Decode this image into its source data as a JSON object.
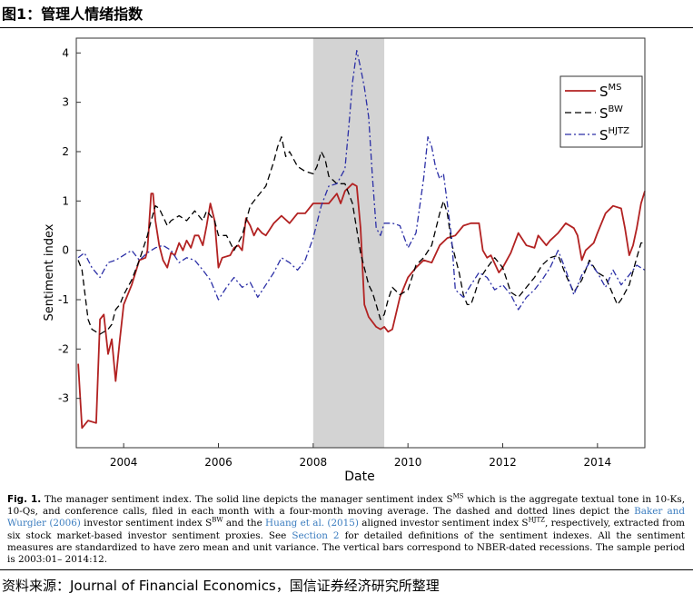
{
  "header": {
    "title": "图1：管理人情绪指数"
  },
  "caption": {
    "fig_label": "Fig. 1.",
    "p1": " The manager sentiment index. The solid line depicts the manager sentiment index S",
    "p1_sup": "MS",
    "p2": " which is the aggregate textual tone in 10-Ks, 10-Qs, and conference calls, filed in each month with a four-month moving average. The dashed and dotted lines depict the ",
    "link1": "Baker and Wurgler (2006)",
    "p3": " investor sentiment index S",
    "p3_sup": "BW",
    "p4": " and the ",
    "link2": "Huang et al. (2015)",
    "p5": " aligned investor sentiment index S",
    "p5_sup": "HJTZ",
    "p6": ", respectively, extracted from six stock market-based investor sentiment proxies. See ",
    "link3": "Section 2",
    "p7": " for detailed definitions of the sentiment indexes. All the sentiment measures are standardized to have zero mean and unit variance. The vertical bars correspond to NBER-dated recessions. The sample period is 2003:01– 2014:12."
  },
  "source": {
    "text": "资料来源：Journal of Financial Economics，国信证券经济研究所整理"
  },
  "chart_data": {
    "type": "line",
    "xlabel": "Date",
    "ylabel": "Sentiment index",
    "xlim": [
      2003.0,
      2015.0
    ],
    "ylim": [
      -4.0,
      4.3
    ],
    "xticks": [
      2004,
      2006,
      2008,
      2010,
      2012,
      2014
    ],
    "yticks": [
      -3,
      -2,
      -1,
      0,
      1,
      2,
      3,
      4
    ],
    "grid": false,
    "legend_position": "top-right",
    "shaded_regions": [
      {
        "from": 2008.0,
        "to": 2009.5,
        "color": "#d3d3d3"
      }
    ],
    "series": [
      {
        "name": "S",
        "name_sup": "MS",
        "color": "#b22222",
        "dash": "solid",
        "points": [
          [
            2003.04,
            -2.3
          ],
          [
            2003.12,
            -3.6
          ],
          [
            2003.25,
            -3.45
          ],
          [
            2003.42,
            -3.5
          ],
          [
            2003.5,
            -1.4
          ],
          [
            2003.58,
            -1.3
          ],
          [
            2003.67,
            -2.1
          ],
          [
            2003.75,
            -1.8
          ],
          [
            2003.83,
            -2.65
          ],
          [
            2003.92,
            -1.8
          ],
          [
            2004.0,
            -1.1
          ],
          [
            2004.17,
            -0.7
          ],
          [
            2004.33,
            -0.2
          ],
          [
            2004.46,
            -0.15
          ],
          [
            2004.5,
            0.0
          ],
          [
            2004.58,
            1.15
          ],
          [
            2004.62,
            1.15
          ],
          [
            2004.67,
            0.6
          ],
          [
            2004.75,
            0.1
          ],
          [
            2004.83,
            -0.2
          ],
          [
            2004.92,
            -0.35
          ],
          [
            2005.0,
            -0.05
          ],
          [
            2005.08,
            -0.1
          ],
          [
            2005.17,
            0.15
          ],
          [
            2005.25,
            0.0
          ],
          [
            2005.33,
            0.2
          ],
          [
            2005.42,
            0.05
          ],
          [
            2005.5,
            0.3
          ],
          [
            2005.58,
            0.3
          ],
          [
            2005.67,
            0.1
          ],
          [
            2005.75,
            0.5
          ],
          [
            2005.83,
            0.95
          ],
          [
            2005.92,
            0.6
          ],
          [
            2006.0,
            -0.35
          ],
          [
            2006.08,
            -0.15
          ],
          [
            2006.25,
            -0.1
          ],
          [
            2006.33,
            0.05
          ],
          [
            2006.42,
            0.1
          ],
          [
            2006.5,
            0.0
          ],
          [
            2006.58,
            0.65
          ],
          [
            2006.67,
            0.5
          ],
          [
            2006.75,
            0.3
          ],
          [
            2006.83,
            0.45
          ],
          [
            2006.92,
            0.35
          ],
          [
            2007.0,
            0.3
          ],
          [
            2007.17,
            0.55
          ],
          [
            2007.33,
            0.7
          ],
          [
            2007.5,
            0.55
          ],
          [
            2007.67,
            0.75
          ],
          [
            2007.83,
            0.75
          ],
          [
            2008.0,
            0.95
          ],
          [
            2008.17,
            0.95
          ],
          [
            2008.33,
            0.95
          ],
          [
            2008.5,
            1.15
          ],
          [
            2008.58,
            0.95
          ],
          [
            2008.67,
            1.2
          ],
          [
            2008.83,
            1.35
          ],
          [
            2008.92,
            1.3
          ],
          [
            2009.0,
            0.45
          ],
          [
            2009.08,
            -1.1
          ],
          [
            2009.17,
            -1.35
          ],
          [
            2009.33,
            -1.55
          ],
          [
            2009.42,
            -1.6
          ],
          [
            2009.5,
            -1.55
          ],
          [
            2009.58,
            -1.65
          ],
          [
            2009.67,
            -1.6
          ],
          [
            2009.83,
            -0.95
          ],
          [
            2010.0,
            -0.55
          ],
          [
            2010.17,
            -0.35
          ],
          [
            2010.33,
            -0.2
          ],
          [
            2010.5,
            -0.25
          ],
          [
            2010.67,
            0.1
          ],
          [
            2010.83,
            0.25
          ],
          [
            2011.0,
            0.3
          ],
          [
            2011.17,
            0.5
          ],
          [
            2011.33,
            0.55
          ],
          [
            2011.5,
            0.55
          ],
          [
            2011.58,
            0.0
          ],
          [
            2011.67,
            -0.15
          ],
          [
            2011.75,
            -0.1
          ],
          [
            2011.92,
            -0.45
          ],
          [
            2012.0,
            -0.35
          ],
          [
            2012.17,
            -0.05
          ],
          [
            2012.33,
            0.35
          ],
          [
            2012.5,
            0.1
          ],
          [
            2012.67,
            0.05
          ],
          [
            2012.75,
            0.3
          ],
          [
            2012.92,
            0.1
          ],
          [
            2013.0,
            0.2
          ],
          [
            2013.17,
            0.35
          ],
          [
            2013.33,
            0.55
          ],
          [
            2013.5,
            0.45
          ],
          [
            2013.58,
            0.3
          ],
          [
            2013.67,
            -0.2
          ],
          [
            2013.75,
            0.0
          ],
          [
            2013.92,
            0.15
          ],
          [
            2014.0,
            0.35
          ],
          [
            2014.17,
            0.75
          ],
          [
            2014.33,
            0.9
          ],
          [
            2014.5,
            0.85
          ],
          [
            2014.58,
            0.45
          ],
          [
            2014.67,
            -0.1
          ],
          [
            2014.75,
            0.1
          ],
          [
            2014.83,
            0.45
          ],
          [
            2014.92,
            0.95
          ],
          [
            2015.0,
            1.2
          ]
        ]
      },
      {
        "name": "S",
        "name_sup": "BW",
        "color": "#000000",
        "dash": "dashed",
        "points": [
          [
            2003.04,
            -0.2
          ],
          [
            2003.12,
            -0.4
          ],
          [
            2003.25,
            -1.4
          ],
          [
            2003.33,
            -1.6
          ],
          [
            2003.5,
            -1.7
          ],
          [
            2003.67,
            -1.6
          ],
          [
            2003.75,
            -1.5
          ],
          [
            2003.83,
            -1.2
          ],
          [
            2003.92,
            -1.1
          ],
          [
            2004.0,
            -0.9
          ],
          [
            2004.17,
            -0.6
          ],
          [
            2004.33,
            -0.2
          ],
          [
            2004.5,
            0.3
          ],
          [
            2004.58,
            0.6
          ],
          [
            2004.67,
            0.9
          ],
          [
            2004.75,
            0.85
          ],
          [
            2004.92,
            0.5
          ],
          [
            2005.0,
            0.6
          ],
          [
            2005.17,
            0.7
          ],
          [
            2005.33,
            0.6
          ],
          [
            2005.5,
            0.8
          ],
          [
            2005.67,
            0.6
          ],
          [
            2005.75,
            0.8
          ],
          [
            2005.92,
            0.6
          ],
          [
            2006.0,
            0.3
          ],
          [
            2006.17,
            0.3
          ],
          [
            2006.33,
            0.0
          ],
          [
            2006.5,
            0.3
          ],
          [
            2006.67,
            0.9
          ],
          [
            2006.83,
            1.1
          ],
          [
            2007.0,
            1.3
          ],
          [
            2007.17,
            1.8
          ],
          [
            2007.25,
            2.1
          ],
          [
            2007.33,
            2.3
          ],
          [
            2007.42,
            1.9
          ],
          [
            2007.5,
            2.0
          ],
          [
            2007.67,
            1.7
          ],
          [
            2007.83,
            1.6
          ],
          [
            2008.0,
            1.55
          ],
          [
            2008.08,
            1.7
          ],
          [
            2008.17,
            2.0
          ],
          [
            2008.25,
            1.85
          ],
          [
            2008.33,
            1.5
          ],
          [
            2008.5,
            1.35
          ],
          [
            2008.67,
            1.35
          ],
          [
            2008.83,
            0.95
          ],
          [
            2009.0,
            -0.05
          ],
          [
            2009.17,
            -0.7
          ],
          [
            2009.25,
            -0.85
          ],
          [
            2009.33,
            -1.1
          ],
          [
            2009.42,
            -1.4
          ],
          [
            2009.5,
            -1.3
          ],
          [
            2009.58,
            -1.0
          ],
          [
            2009.67,
            -0.75
          ],
          [
            2009.83,
            -0.9
          ],
          [
            2010.0,
            -0.8
          ],
          [
            2010.17,
            -0.3
          ],
          [
            2010.33,
            -0.15
          ],
          [
            2010.5,
            0.1
          ],
          [
            2010.58,
            0.4
          ],
          [
            2010.67,
            0.75
          ],
          [
            2010.75,
            1.0
          ],
          [
            2010.83,
            0.75
          ],
          [
            2010.92,
            0.15
          ],
          [
            2011.0,
            -0.15
          ],
          [
            2011.08,
            -0.45
          ],
          [
            2011.17,
            -0.9
          ],
          [
            2011.25,
            -1.1
          ],
          [
            2011.33,
            -1.1
          ],
          [
            2011.42,
            -0.85
          ],
          [
            2011.5,
            -0.6
          ],
          [
            2011.67,
            -0.35
          ],
          [
            2011.83,
            -0.15
          ],
          [
            2012.0,
            -0.35
          ],
          [
            2012.17,
            -0.85
          ],
          [
            2012.33,
            -0.95
          ],
          [
            2012.5,
            -0.75
          ],
          [
            2012.67,
            -0.55
          ],
          [
            2012.83,
            -0.3
          ],
          [
            2013.0,
            -0.15
          ],
          [
            2013.17,
            -0.1
          ],
          [
            2013.33,
            -0.5
          ],
          [
            2013.5,
            -0.85
          ],
          [
            2013.67,
            -0.6
          ],
          [
            2013.83,
            -0.2
          ],
          [
            2014.0,
            -0.45
          ],
          [
            2014.17,
            -0.55
          ],
          [
            2014.33,
            -0.9
          ],
          [
            2014.42,
            -1.1
          ],
          [
            2014.5,
            -1.0
          ],
          [
            2014.67,
            -0.7
          ],
          [
            2014.83,
            -0.15
          ],
          [
            2014.92,
            0.15
          ],
          [
            2015.0,
            0.15
          ]
        ]
      },
      {
        "name": "S",
        "name_sup": "HJTZ",
        "color": "#2b2fa6",
        "dash": "dashdot",
        "points": [
          [
            2003.04,
            -0.15
          ],
          [
            2003.17,
            -0.05
          ],
          [
            2003.33,
            -0.35
          ],
          [
            2003.5,
            -0.55
          ],
          [
            2003.67,
            -0.25
          ],
          [
            2003.83,
            -0.2
          ],
          [
            2004.0,
            -0.1
          ],
          [
            2004.17,
            0.0
          ],
          [
            2004.33,
            -0.2
          ],
          [
            2004.5,
            -0.05
          ],
          [
            2004.67,
            0.05
          ],
          [
            2004.83,
            0.1
          ],
          [
            2005.0,
            0.0
          ],
          [
            2005.17,
            -0.25
          ],
          [
            2005.33,
            -0.15
          ],
          [
            2005.5,
            -0.2
          ],
          [
            2005.67,
            -0.4
          ],
          [
            2005.83,
            -0.6
          ],
          [
            2006.0,
            -1.0
          ],
          [
            2006.17,
            -0.75
          ],
          [
            2006.33,
            -0.55
          ],
          [
            2006.5,
            -0.75
          ],
          [
            2006.67,
            -0.65
          ],
          [
            2006.83,
            -0.95
          ],
          [
            2007.0,
            -0.7
          ],
          [
            2007.17,
            -0.45
          ],
          [
            2007.33,
            -0.15
          ],
          [
            2007.5,
            -0.25
          ],
          [
            2007.67,
            -0.4
          ],
          [
            2007.83,
            -0.2
          ],
          [
            2008.0,
            0.25
          ],
          [
            2008.17,
            0.9
          ],
          [
            2008.33,
            1.3
          ],
          [
            2008.5,
            1.35
          ],
          [
            2008.67,
            1.65
          ],
          [
            2008.75,
            2.5
          ],
          [
            2008.83,
            3.4
          ],
          [
            2008.92,
            4.05
          ],
          [
            2009.0,
            3.7
          ],
          [
            2009.08,
            3.3
          ],
          [
            2009.17,
            2.7
          ],
          [
            2009.25,
            1.5
          ],
          [
            2009.33,
            0.45
          ],
          [
            2009.42,
            0.3
          ],
          [
            2009.5,
            0.55
          ],
          [
            2009.67,
            0.55
          ],
          [
            2009.83,
            0.5
          ],
          [
            2010.0,
            0.05
          ],
          [
            2010.17,
            0.35
          ],
          [
            2010.33,
            1.45
          ],
          [
            2010.42,
            2.3
          ],
          [
            2010.5,
            2.1
          ],
          [
            2010.58,
            1.7
          ],
          [
            2010.67,
            1.45
          ],
          [
            2010.75,
            1.55
          ],
          [
            2010.83,
            0.95
          ],
          [
            2010.92,
            0.25
          ],
          [
            2011.0,
            -0.8
          ],
          [
            2011.17,
            -0.95
          ],
          [
            2011.33,
            -0.7
          ],
          [
            2011.5,
            -0.45
          ],
          [
            2011.67,
            -0.55
          ],
          [
            2011.83,
            -0.8
          ],
          [
            2012.0,
            -0.7
          ],
          [
            2012.17,
            -0.9
          ],
          [
            2012.33,
            -1.2
          ],
          [
            2012.5,
            -0.95
          ],
          [
            2012.67,
            -0.8
          ],
          [
            2012.83,
            -0.6
          ],
          [
            2013.0,
            -0.35
          ],
          [
            2013.17,
            0.0
          ],
          [
            2013.33,
            -0.4
          ],
          [
            2013.5,
            -0.9
          ],
          [
            2013.67,
            -0.5
          ],
          [
            2013.83,
            -0.25
          ],
          [
            2014.0,
            -0.45
          ],
          [
            2014.17,
            -0.75
          ],
          [
            2014.33,
            -0.4
          ],
          [
            2014.5,
            -0.7
          ],
          [
            2014.67,
            -0.5
          ],
          [
            2014.83,
            -0.3
          ],
          [
            2015.0,
            -0.4
          ]
        ]
      }
    ]
  }
}
